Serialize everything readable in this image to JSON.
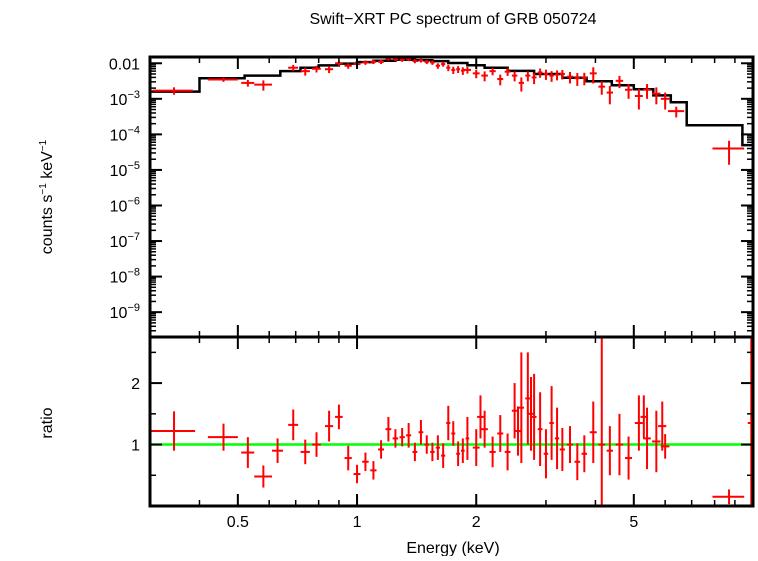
{
  "chart_data": {
    "title": "Swift−XRT PC spectrum of GRB 050724",
    "type": "scatter",
    "colors": {
      "data": "#ff0000",
      "model": "#000000",
      "unity": "#00ff00",
      "frame": "#000000"
    },
    "x_axis": {
      "label": "Energy (keV)",
      "scale": "log",
      "lim": [
        0.3,
        10.0
      ],
      "ticks": [
        {
          "value": 0.5,
          "label": "0.5"
        },
        {
          "value": 1,
          "label": "1"
        },
        {
          "value": 2,
          "label": "2"
        },
        {
          "value": 5,
          "label": "5"
        }
      ]
    },
    "panels": [
      {
        "name": "spectrum",
        "ylabel_main": "counts s",
        "ylabel_exp1": "−1",
        "ylabel_mid": " keV",
        "ylabel_exp2": "−1",
        "yscale": "log",
        "ylim": [
          2e-10,
          0.015
        ],
        "yticks": [
          {
            "value": 0.01,
            "base": "0.01",
            "exp": ""
          },
          {
            "value": 0.001,
            "base": "10",
            "exp": "−3"
          },
          {
            "value": 0.0001,
            "base": "10",
            "exp": "−4"
          },
          {
            "value": 1e-05,
            "base": "10",
            "exp": "−5"
          },
          {
            "value": 1e-06,
            "base": "10",
            "exp": "−6"
          },
          {
            "value": 1e-07,
            "base": "10",
            "exp": "−7"
          },
          {
            "value": 1e-08,
            "base": "10",
            "exp": "−8"
          },
          {
            "value": 1e-09,
            "base": "10",
            "exp": "−9"
          }
        ],
        "series": [
          {
            "name": "data",
            "kind": "errorbars",
            "x": [
              0.345,
              0.46,
              0.53,
              0.58,
              0.69,
              0.74,
              0.79,
              0.85,
              0.9,
              0.95,
              1.0,
              1.05,
              1.1,
              1.15,
              1.2,
              1.25,
              1.3,
              1.35,
              1.4,
              1.45,
              1.5,
              1.55,
              1.6,
              1.65,
              1.7,
              1.75,
              1.8,
              1.85,
              1.9,
              2.0,
              2.1,
              2.2,
              2.3,
              2.4,
              2.5,
              2.6,
              2.7,
              2.8,
              2.9,
              3.0,
              3.1,
              3.2,
              3.3,
              3.45,
              3.6,
              3.75,
              3.95,
              4.15,
              4.35,
              4.6,
              4.85,
              5.15,
              5.4,
              5.7,
              6.0,
              6.4,
              8.7
            ],
            "xerr": [
              0.04,
              0.04,
              0.02,
              0.03,
              0.02,
              0.02,
              0.02,
              0.02,
              0.02,
              0.02,
              0.02,
              0.02,
              0.02,
              0.02,
              0.02,
              0.02,
              0.02,
              0.02,
              0.02,
              0.02,
              0.02,
              0.02,
              0.02,
              0.02,
              0.02,
              0.02,
              0.02,
              0.02,
              0.04,
              0.04,
              0.04,
              0.04,
              0.04,
              0.04,
              0.04,
              0.04,
              0.04,
              0.04,
              0.04,
              0.04,
              0.04,
              0.04,
              0.05,
              0.06,
              0.06,
              0.06,
              0.08,
              0.08,
              0.08,
              0.1,
              0.1,
              0.12,
              0.12,
              0.14,
              0.15,
              0.3,
              0.8
            ],
            "y": [
              0.0017,
              0.0035,
              0.0028,
              0.0025,
              0.0075,
              0.006,
              0.007,
              0.0068,
              0.01,
              0.0085,
              0.0095,
              0.0105,
              0.011,
              0.011,
              0.0135,
              0.013,
              0.0125,
              0.013,
              0.0115,
              0.012,
              0.011,
              0.0105,
              0.0085,
              0.0095,
              0.0075,
              0.0065,
              0.0068,
              0.0062,
              0.0065,
              0.0052,
              0.0045,
              0.006,
              0.0036,
              0.0058,
              0.0045,
              0.0028,
              0.0045,
              0.004,
              0.0055,
              0.005,
              0.0045,
              0.0048,
              0.005,
              0.0042,
              0.0038,
              0.0039,
              0.0052,
              0.0022,
              0.0015,
              0.0032,
              0.0018,
              0.0012,
              0.0018,
              0.0014,
              0.001,
              0.00045,
              4e-05
            ],
            "yerr": [
              0.0004,
              0.0005,
              0.0006,
              0.0008,
              0.0015,
              0.0015,
              0.0015,
              0.0015,
              0.0015,
              0.0015,
              0.0015,
              0.0015,
              0.0015,
              0.0015,
              0.0015,
              0.0015,
              0.0015,
              0.0015,
              0.0015,
              0.0015,
              0.0015,
              0.0015,
              0.0015,
              0.0015,
              0.0015,
              0.0015,
              0.0015,
              0.0015,
              0.0014,
              0.0014,
              0.0014,
              0.0014,
              0.0012,
              0.0014,
              0.0014,
              0.0012,
              0.0014,
              0.0014,
              0.0016,
              0.0016,
              0.0015,
              0.0015,
              0.0015,
              0.0015,
              0.0015,
              0.0015,
              0.0025,
              0.0009,
              0.0008,
              0.0012,
              0.0008,
              0.0007,
              0.0008,
              0.0007,
              0.0005,
              0.00015,
              2.6e-05
            ]
          },
          {
            "name": "model",
            "kind": "step",
            "edges": [
              0.3,
              0.4,
              0.52,
              0.64,
              0.72,
              0.8,
              0.9,
              1.0,
              1.1,
              1.25,
              1.4,
              1.55,
              1.7,
              1.9,
              2.1,
              2.4,
              2.8,
              3.3,
              3.8,
              4.4,
              5.0,
              5.6,
              6.2,
              6.8,
              9.4,
              10.0
            ],
            "values": [
              0.0016,
              0.0038,
              0.0045,
              0.006,
              0.0075,
              0.0087,
              0.0098,
              0.0108,
              0.0118,
              0.0125,
              0.0122,
              0.0115,
              0.0102,
              0.0088,
              0.0075,
              0.0061,
              0.005,
              0.0039,
              0.0031,
              0.0024,
              0.00185,
              0.00125,
              0.0008,
              0.00018,
              5e-05
            ]
          }
        ]
      },
      {
        "name": "ratio",
        "ylabel": "ratio",
        "yscale": "linear",
        "ylim": [
          0.0,
          2.75
        ],
        "yticks": [
          {
            "value": 1,
            "label": "1"
          },
          {
            "value": 2,
            "label": "2"
          }
        ],
        "reference_line": 1.0,
        "series": [
          {
            "name": "data",
            "kind": "errorbars",
            "x": [
              0.345,
              0.46,
              0.53,
              0.58,
              0.63,
              0.69,
              0.74,
              0.79,
              0.85,
              0.9,
              0.95,
              1.0,
              1.05,
              1.1,
              1.15,
              1.2,
              1.25,
              1.3,
              1.35,
              1.4,
              1.45,
              1.5,
              1.55,
              1.6,
              1.65,
              1.7,
              1.75,
              1.8,
              1.85,
              1.9,
              2.0,
              2.05,
              2.1,
              2.2,
              2.3,
              2.4,
              2.5,
              2.55,
              2.6,
              2.7,
              2.75,
              2.8,
              2.9,
              3.0,
              3.1,
              3.2,
              3.3,
              3.45,
              3.6,
              3.75,
              3.95,
              4.15,
              4.35,
              4.6,
              4.85,
              5.15,
              5.3,
              5.4,
              5.7,
              5.9,
              6.0,
              8.7,
              9.9
            ],
            "xerr": [
              0.045,
              0.04,
              0.02,
              0.03,
              0.02,
              0.02,
              0.02,
              0.02,
              0.02,
              0.02,
              0.02,
              0.02,
              0.02,
              0.02,
              0.02,
              0.02,
              0.02,
              0.02,
              0.02,
              0.02,
              0.02,
              0.02,
              0.02,
              0.02,
              0.02,
              0.02,
              0.02,
              0.02,
              0.02,
              0.02,
              0.04,
              0.04,
              0.04,
              0.04,
              0.04,
              0.04,
              0.04,
              0.04,
              0.04,
              0.04,
              0.04,
              0.04,
              0.04,
              0.04,
              0.04,
              0.04,
              0.05,
              0.06,
              0.06,
              0.06,
              0.08,
              0.08,
              0.08,
              0.1,
              0.1,
              0.12,
              0.1,
              0.12,
              0.14,
              0.14,
              0.15,
              0.8,
              0.2
            ],
            "y": [
              1.22,
              1.12,
              0.87,
              0.48,
              0.9,
              1.32,
              0.88,
              1.0,
              1.3,
              1.45,
              0.78,
              0.52,
              0.72,
              0.58,
              0.92,
              1.25,
              1.1,
              1.12,
              1.15,
              0.88,
              1.2,
              1.0,
              0.88,
              0.95,
              0.82,
              1.35,
              1.18,
              0.85,
              0.9,
              1.1,
              0.95,
              1.45,
              1.25,
              0.88,
              1.18,
              0.88,
              1.55,
              1.22,
              1.6,
              1.75,
              1.5,
              1.45,
              1.25,
              0.85,
              1.35,
              1.1,
              0.92,
              1.0,
              0.72,
              0.85,
              1.2,
              1.0,
              0.9,
              1.0,
              0.78,
              1.35,
              1.45,
              1.1,
              1.05,
              1.3,
              0.97,
              0.15,
              1.35
            ],
            "yerr": [
              0.32,
              0.22,
              0.25,
              0.18,
              0.2,
              0.25,
              0.2,
              0.2,
              0.25,
              0.2,
              0.2,
              0.15,
              0.15,
              0.15,
              0.15,
              0.2,
              0.15,
              0.15,
              0.2,
              0.15,
              0.2,
              0.15,
              0.15,
              0.2,
              0.2,
              0.28,
              0.2,
              0.2,
              0.2,
              0.35,
              0.3,
              0.35,
              0.3,
              0.25,
              0.3,
              0.3,
              0.45,
              0.4,
              0.9,
              0.75,
              0.6,
              0.7,
              0.6,
              0.4,
              0.6,
              0.5,
              0.35,
              0.3,
              0.3,
              0.3,
              0.5,
              1.9,
              0.4,
              0.5,
              0.35,
              0.45,
              0.35,
              0.5,
              0.5,
              0.4,
              0.2,
              0.12,
              1.8
            ]
          }
        ]
      }
    ]
  }
}
